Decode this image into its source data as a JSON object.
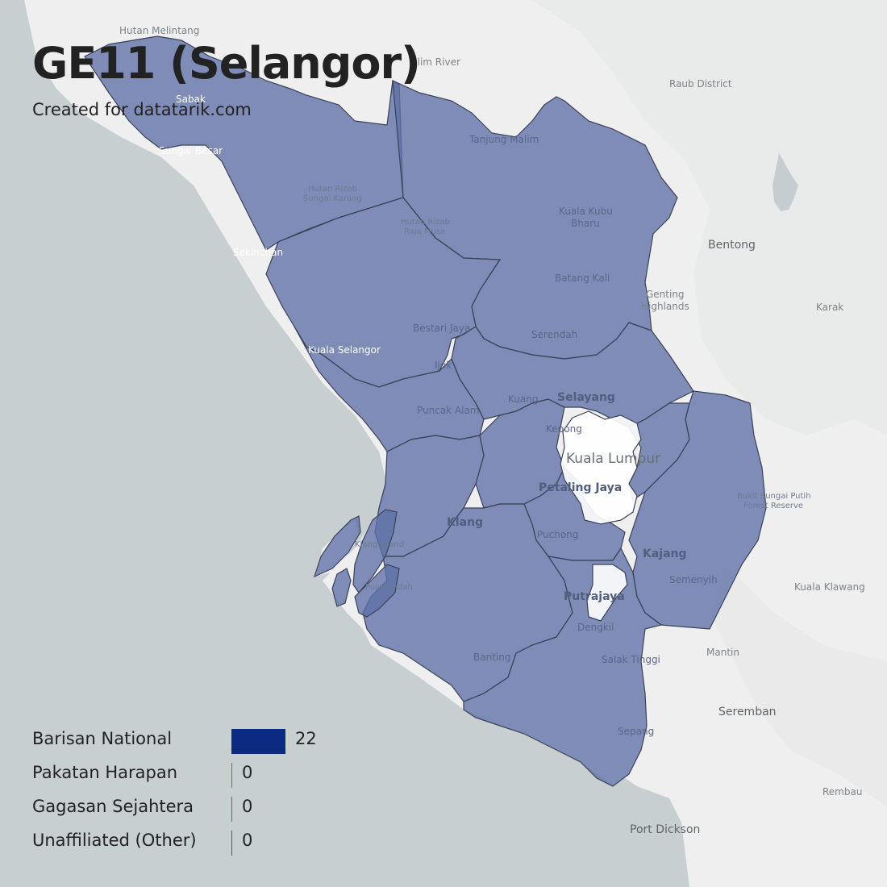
{
  "title": "GE11 (Selangor)",
  "subtitle": "Created for datatarik.com",
  "colors": {
    "sea": "#c8cfd1",
    "land": "#efefef",
    "district_fill": "#5d6fa7",
    "district_border": "#3a4256",
    "enclave_fill": "#ffffff"
  },
  "map_labels": {
    "hutan_melintang": "Hutan Melintang",
    "slim_river": "Slim River",
    "raub_district": "Raub District",
    "sabak": "Sabak",
    "sungai_besar": "Sungai Besar",
    "tanjung_malim": "Tanjung Malim",
    "hutan_rizab_sungai_karang_1": "Hutan Rizab",
    "hutan_rizab_sungai_karang_2": "Sungai Karang",
    "hutan_rizab_raja_musa_1": "Hutan Rizab",
    "hutan_rizab_raja_musa_2": "Raja Musa",
    "kuala_kubu_bharu_1": "Kuala Kubu",
    "kuala_kubu_bharu_2": "Bharu",
    "bentong": "Bentong",
    "sekinchan": "Sekinchan",
    "batang_kali": "Batang Kali",
    "genting_highlands_1": "Genting",
    "genting_highlands_2": "Highlands",
    "karak": "Karak",
    "bestari_jaya": "Bestari Jaya",
    "serendah": "Serendah",
    "kuala_selangor": "Kuala Selangor",
    "ijok": "Ijok",
    "selayang": "Selayang",
    "kuang": "Kuang",
    "puncak_alam": "Puncak Alam",
    "kepong": "Kepong",
    "kuala_lumpur": "Kuala Lumpur",
    "petaling_jaya": "Petaling Jaya",
    "bukit_sungai_putih_1": "Bukit Sungai Putih",
    "bukit_sungai_putih_2": "Forest Reserve",
    "klang": "Klang",
    "klang_island": "Klang Island",
    "puchong": "Puchong",
    "kajang": "Kajang",
    "pulau_indah": "Pulau Indah",
    "semenyih": "Semenyih",
    "kuala_klawang": "Kuala Klawang",
    "putrajaya": "Putrajaya",
    "dengkil": "Dengkil",
    "mantin": "Mantin",
    "banting": "Banting",
    "salak_tinggi": "Salak Tinggi",
    "seremban": "Seremban",
    "sepang": "Sepang",
    "rembau": "Rembau",
    "port_dickson": "Port Dickson"
  },
  "legend": [
    {
      "label": "Barisan National",
      "seats": 22,
      "color": "#0b2a82"
    },
    {
      "label": "Pakatan Harapan",
      "seats": 0,
      "color": "#d0454d"
    },
    {
      "label": "Gagasan Sejahtera",
      "seats": 0,
      "color": "#2e8b3a"
    },
    {
      "label": "Unaffiliated (Other)",
      "seats": 0,
      "color": "#555555"
    }
  ]
}
